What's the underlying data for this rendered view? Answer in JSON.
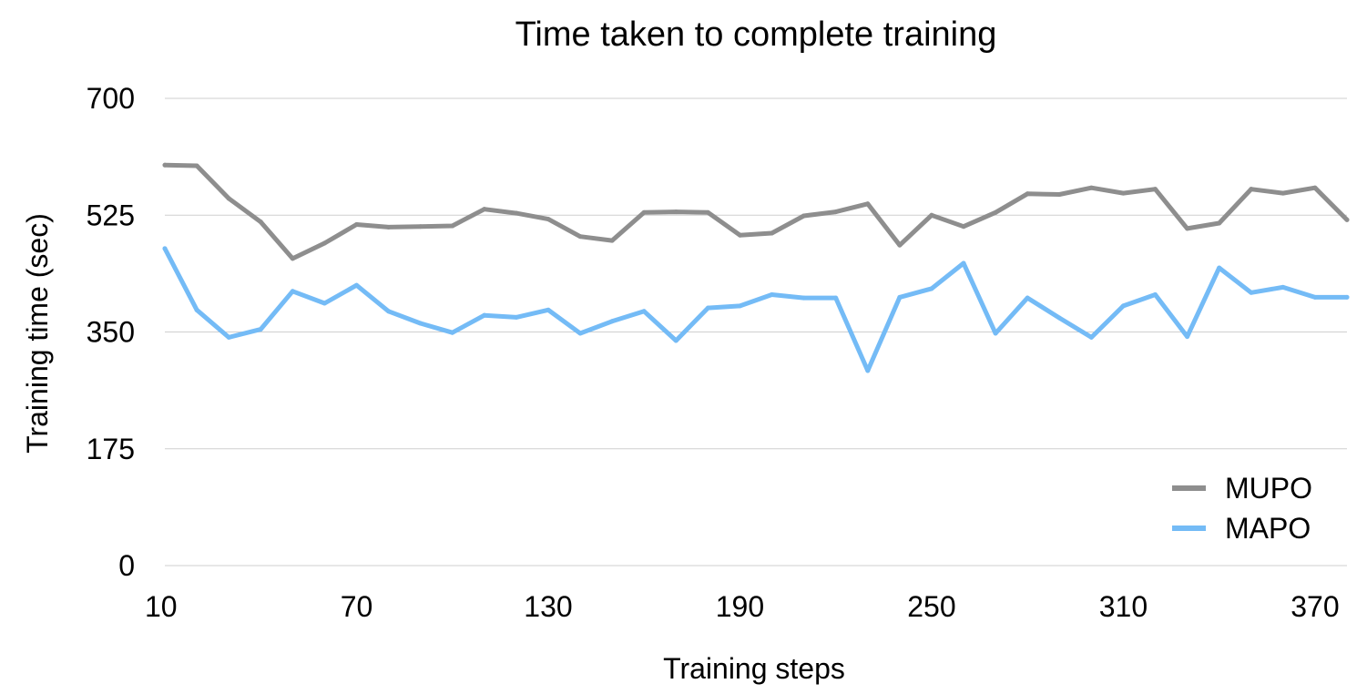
{
  "chart_data": {
    "type": "line",
    "title": "Time taken to complete training",
    "xlabel": "Training steps",
    "ylabel": "Training time (sec)",
    "x": [
      10,
      20,
      30,
      40,
      50,
      60,
      70,
      80,
      90,
      100,
      110,
      120,
      130,
      140,
      150,
      160,
      170,
      180,
      190,
      200,
      210,
      220,
      230,
      240,
      250,
      260,
      270,
      280,
      290,
      300,
      310,
      320,
      330,
      340,
      350,
      360,
      370,
      380
    ],
    "x_ticks": [
      10,
      70,
      130,
      190,
      250,
      310,
      370
    ],
    "x_tick_labels": [
      "10",
      "70",
      "130",
      "190",
      "250",
      "310",
      "370"
    ],
    "xlim": [
      10,
      380
    ],
    "y_ticks": [
      0,
      175,
      350,
      525,
      700
    ],
    "y_tick_labels": [
      "0",
      "175",
      "350",
      "525",
      "700"
    ],
    "ylim": [
      0,
      700
    ],
    "grid": "horizontal",
    "legend_position": "bottom-right",
    "series": [
      {
        "name": "MUPO",
        "color": "#8e8e8e",
        "values": [
          600,
          599,
          550,
          515,
          460,
          483,
          511,
          507,
          508,
          509,
          534,
          528,
          519,
          493,
          487,
          529,
          530,
          529,
          495,
          498,
          524,
          530,
          542,
          480,
          525,
          508,
          529,
          557,
          556,
          566,
          558,
          564,
          505,
          513,
          564,
          558,
          566,
          518
        ]
      },
      {
        "name": "MAPO",
        "color": "#74bbf6",
        "values": [
          475,
          383,
          342,
          354,
          411,
          393,
          420,
          381,
          363,
          349,
          375,
          372,
          383,
          348,
          366,
          381,
          337,
          386,
          389,
          406,
          401,
          401,
          292,
          402,
          415,
          453,
          348,
          401,
          371,
          342,
          389,
          406,
          343,
          446,
          409,
          417,
          402,
          402
        ]
      }
    ]
  }
}
